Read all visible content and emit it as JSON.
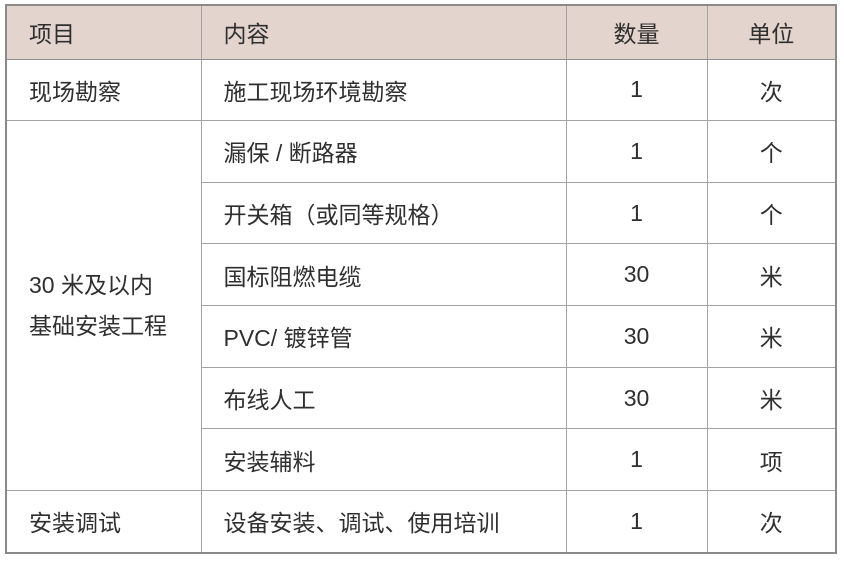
{
  "colors": {
    "header_bg": "#e3d5cd",
    "grid_border": "#a3a3a3",
    "outer_border": "#8a8a8a",
    "text": "#2f2f2f",
    "page_bg": "#ffffff"
  },
  "table": {
    "headers": {
      "item": "项目",
      "content": "内容",
      "qty": "数量",
      "unit": "单位"
    },
    "rows": [
      {
        "item": "现场勘察",
        "content": "施工现场环境勘察",
        "qty": "1",
        "unit": "次"
      },
      {
        "item": "30 米及以内\n基础安装工程",
        "content": "漏保 / 断路器",
        "qty": "1",
        "unit": "个"
      },
      {
        "content": "开关箱（或同等规格）",
        "qty": "1",
        "unit": "个"
      },
      {
        "content": "国标阻燃电缆",
        "qty": "30",
        "unit": "米"
      },
      {
        "content": "PVC/ 镀锌管",
        "qty": "30",
        "unit": "米"
      },
      {
        "content": "布线人工",
        "qty": "30",
        "unit": "米"
      },
      {
        "content": "安装辅料",
        "qty": "1",
        "unit": "项"
      },
      {
        "item": "安装调试",
        "content": "设备安装、调试、使用培训",
        "qty": "1",
        "unit": "次"
      }
    ]
  }
}
